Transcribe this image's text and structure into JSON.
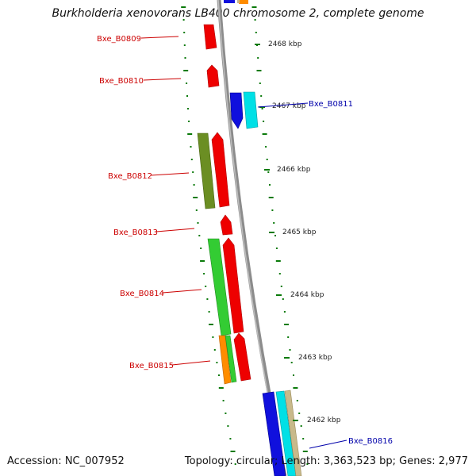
{
  "title": "Burkholderia xenovorans LB400 chromosome 2, complete genome",
  "accession": "Accession: NC_007952",
  "topology": "Topology: circular; Length: 3,363,523 bp; Genes: 2,977",
  "colors": {
    "reverse_gene_label": "#cc0000",
    "forward_gene_label": "#0000aa",
    "backbone": "#8c8c8c",
    "tick": "#0a7a0a",
    "red": "#ee0000",
    "blue": "#1010dd",
    "cyan": "#00e0e6",
    "olive": "#6b8e23",
    "green": "#33cc33",
    "orange": "#ff8c00",
    "tan": "#c8b98a"
  },
  "scale_labels": [
    "2468 kbp",
    "2467 kbp",
    "2466 kbp",
    "2465 kbp",
    "2464 kbp",
    "2463 kbp",
    "2462 kbp"
  ],
  "gene_labels": [
    {
      "text": "Bxe_B0809",
      "strand": "reverse"
    },
    {
      "text": "Bxe_B0810",
      "strand": "reverse"
    },
    {
      "text": "Bxe_B0811",
      "strand": "forward"
    },
    {
      "text": "Bxe_B0812",
      "strand": "reverse"
    },
    {
      "text": "Bxe_B0813",
      "strand": "reverse"
    },
    {
      "text": "Bxe_B0814",
      "strand": "reverse"
    },
    {
      "text": "Bxe_B0815",
      "strand": "reverse"
    },
    {
      "text": "Bxe_B0816",
      "strand": "forward"
    }
  ]
}
